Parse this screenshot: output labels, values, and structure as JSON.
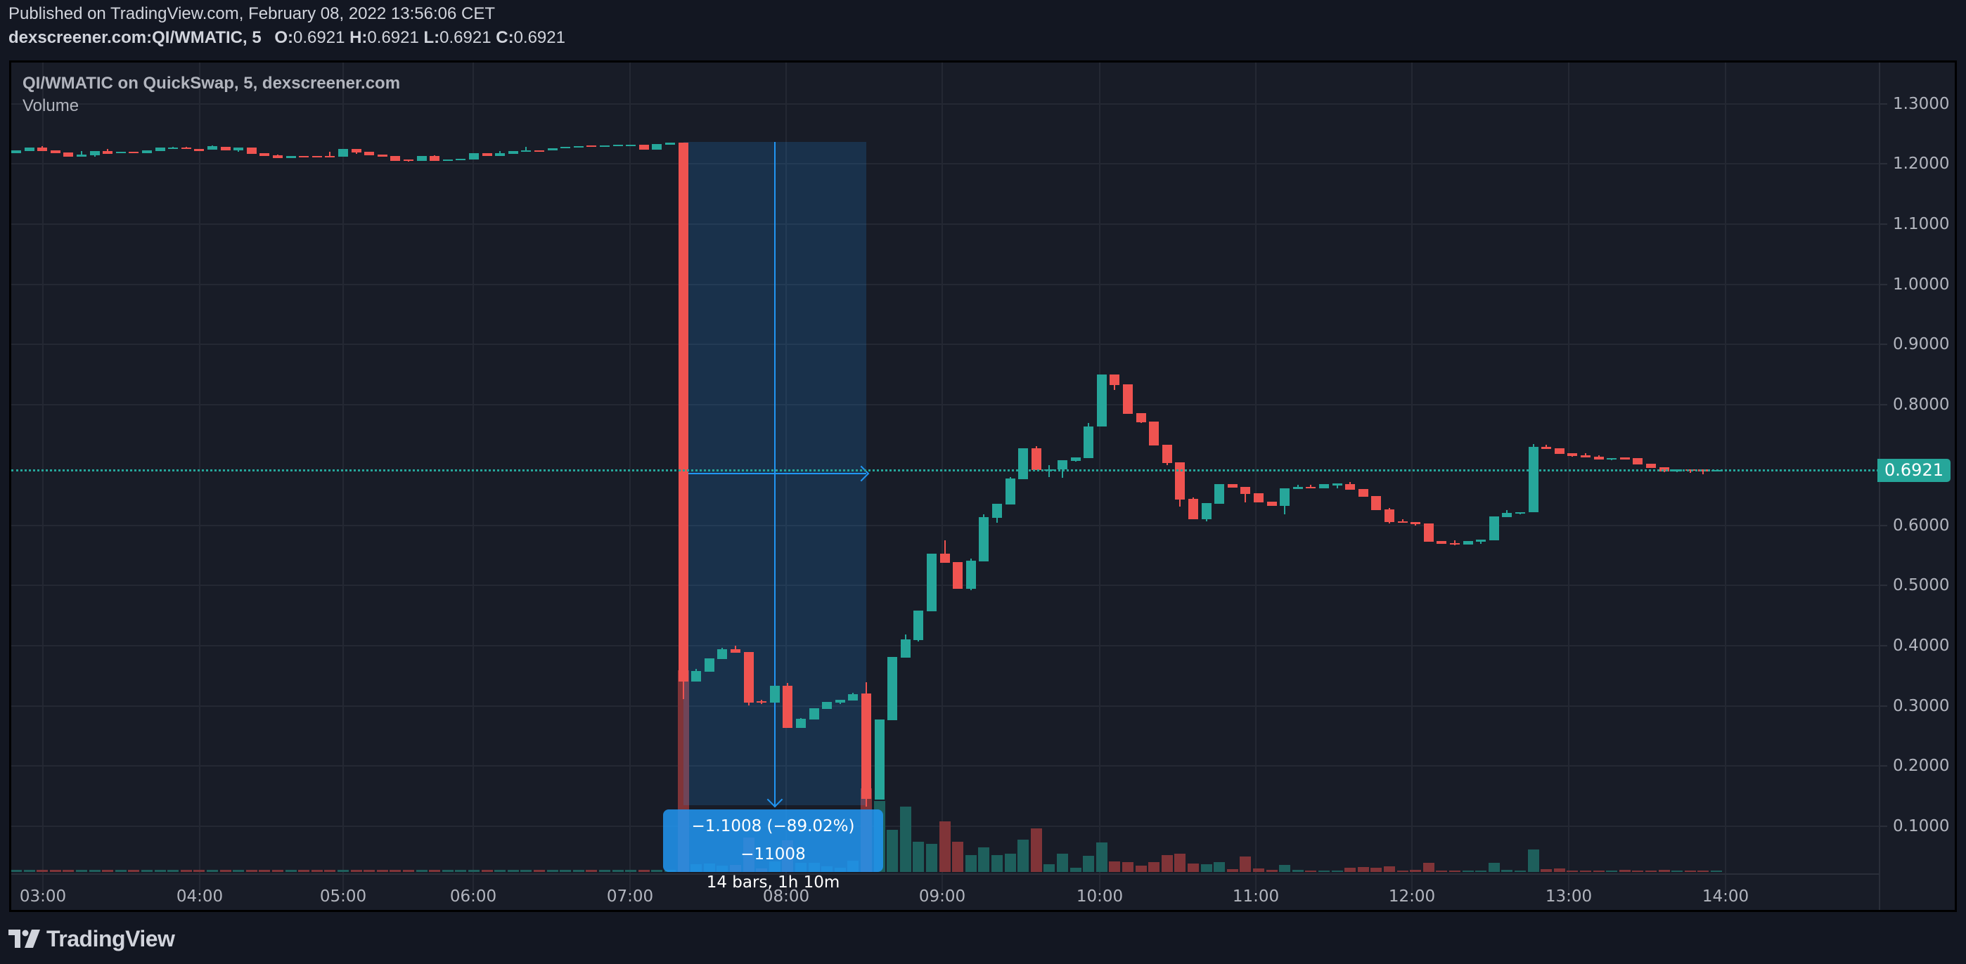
{
  "header": {
    "published": "Published on TradingView.com, February 08, 2022 13:56:06 CET",
    "symbol": "dexscreener.com:QI/WMATIC, 5",
    "ohlc": {
      "o_label": "O:",
      "o": "0.6921",
      "h_label": "H:",
      "h": "0.6921",
      "l_label": "L:",
      "l": "0.6921",
      "c_label": "C:",
      "c": "0.6921"
    }
  },
  "chart": {
    "title": "QI/WMATIC on QuickSwap, 5, dexscreener.com",
    "volume_label": "Volume",
    "last_price": "0.6921",
    "colors": {
      "up": "#26a69a",
      "down": "#ef5350",
      "up_vol": "#1e5f5c",
      "down_vol": "#803438",
      "measure": "#2196f3",
      "grid": "#242833",
      "bg": "#181c27",
      "page_bg": "#131722"
    },
    "measure": {
      "line1": "−1.1008 (−89.02%) −11008",
      "line2": "14 bars, 1h 10m"
    }
  },
  "footer": {
    "logo_text": "TradingView"
  },
  "chart_data": {
    "type": "candlestick",
    "title": "QI/WMATIC on QuickSwap, 5, dexscreener.com",
    "interval": "5m",
    "price_axis": {
      "ticks": [
        "1.3000",
        "1.2000",
        "1.1000",
        "1.0000",
        "0.9000",
        "0.8000",
        "0.6000",
        "0.5000",
        "0.4000",
        "0.3000",
        "0.2000",
        "0.1000"
      ],
      "range": [
        0.0,
        1.35
      ]
    },
    "time_axis": {
      "ticks": [
        "03:00",
        "04:00",
        "05:00",
        "06:00",
        "07:00",
        "08:00",
        "09:00",
        "10:00",
        "11:00",
        "12:00",
        "13:00",
        "14:00"
      ]
    },
    "last_price": 0.6921,
    "measurement": {
      "change": -1.1008,
      "change_pct": -89.02,
      "ticks": -11008,
      "bars": 14,
      "duration": "1h 10m",
      "start_index": 51,
      "end_index": 65
    },
    "candles_ohlc_vol": [
      [
        1.2179,
        1.2225,
        1.2179,
        1.2225,
        3
      ],
      [
        1.2214,
        1.2272,
        1.2214,
        1.2272,
        3
      ],
      [
        1.2272,
        1.2295,
        1.2214,
        1.2214,
        3
      ],
      [
        1.2225,
        1.2225,
        1.2179,
        1.2179,
        3
      ],
      [
        1.219,
        1.219,
        1.212,
        1.212,
        3
      ],
      [
        1.212,
        1.2214,
        1.212,
        1.2155,
        3
      ],
      [
        1.2144,
        1.2214,
        1.212,
        1.2214,
        3
      ],
      [
        1.2214,
        1.2249,
        1.2167,
        1.2167,
        3
      ],
      [
        1.2179,
        1.2202,
        1.2179,
        1.2202,
        3
      ],
      [
        1.2202,
        1.2202,
        1.2179,
        1.2179,
        3
      ],
      [
        1.2179,
        1.2225,
        1.2179,
        1.2225,
        3
      ],
      [
        1.2214,
        1.2272,
        1.2214,
        1.2272,
        3
      ],
      [
        1.2249,
        1.2284,
        1.2249,
        1.2272,
        3
      ],
      [
        1.2272,
        1.2284,
        1.2249,
        1.2249,
        3
      ],
      [
        1.2249,
        1.2249,
        1.2214,
        1.2214,
        3
      ],
      [
        1.2237,
        1.2307,
        1.2237,
        1.2295,
        3
      ],
      [
        1.2284,
        1.2284,
        1.2225,
        1.2225,
        3
      ],
      [
        1.2225,
        1.2272,
        1.22,
        1.2272,
        3
      ],
      [
        1.2272,
        1.2272,
        1.2167,
        1.2167,
        3
      ],
      [
        1.2179,
        1.2179,
        1.2132,
        1.2132,
        3
      ],
      [
        1.2144,
        1.2155,
        1.2097,
        1.2097,
        3
      ],
      [
        1.2097,
        1.2132,
        1.2097,
        1.2132,
        3
      ],
      [
        1.2132,
        1.2132,
        1.2109,
        1.2109,
        3
      ],
      [
        1.2132,
        1.2132,
        1.2109,
        1.2109,
        3
      ],
      [
        1.2132,
        1.2202,
        1.2109,
        1.2109,
        3
      ],
      [
        1.212,
        1.2249,
        1.212,
        1.2249,
        3
      ],
      [
        1.2249,
        1.2249,
        1.2167,
        1.219,
        3
      ],
      [
        1.2202,
        1.2202,
        1.2144,
        1.2144,
        3
      ],
      [
        1.2155,
        1.2155,
        1.212,
        1.212,
        3
      ],
      [
        1.2132,
        1.2132,
        1.205,
        1.205,
        3
      ],
      [
        1.2074,
        1.2074,
        1.204,
        1.205,
        3
      ],
      [
        1.205,
        1.2132,
        1.205,
        1.2132,
        3
      ],
      [
        1.2132,
        1.2144,
        1.205,
        1.205,
        3
      ],
      [
        1.2062,
        1.2074,
        1.2062,
        1.2074,
        3
      ],
      [
        1.2062,
        1.2085,
        1.2062,
        1.2085,
        3
      ],
      [
        1.2074,
        1.2179,
        1.2074,
        1.2179,
        3
      ],
      [
        1.2179,
        1.2179,
        1.2132,
        1.2132,
        3
      ],
      [
        1.2132,
        1.2214,
        1.2132,
        1.2179,
        3
      ],
      [
        1.2167,
        1.2214,
        1.2167,
        1.2214,
        3
      ],
      [
        1.2214,
        1.2284,
        1.2214,
        1.2225,
        3
      ],
      [
        1.2225,
        1.2225,
        1.2214,
        1.2214,
        3
      ],
      [
        1.2225,
        1.226,
        1.2225,
        1.226,
        3
      ],
      [
        1.226,
        1.2284,
        1.226,
        1.2284,
        3
      ],
      [
        1.2272,
        1.2295,
        1.2272,
        1.2295,
        3
      ],
      [
        1.2307,
        1.2307,
        1.2295,
        1.2295,
        3
      ],
      [
        1.2295,
        1.2307,
        1.2295,
        1.2307,
        3
      ],
      [
        1.2295,
        1.2319,
        1.2295,
        1.2319,
        3
      ],
      [
        1.2307,
        1.2319,
        1.2307,
        1.2319,
        3
      ],
      [
        1.2319,
        1.2319,
        1.2237,
        1.2237,
        3
      ],
      [
        1.2237,
        1.233,
        1.2237,
        1.233,
        3
      ],
      [
        1.2319,
        1.2354,
        1.2319,
        1.2354,
        3
      ],
      [
        1.2354,
        1.2354,
        0.3112,
        0.3404,
        287
      ],
      [
        0.3404,
        0.3614,
        0.3404,
        0.3579,
        11
      ],
      [
        0.3567,
        0.3789,
        0.3567,
        0.3789,
        12
      ],
      [
        0.3777,
        0.3963,
        0.3777,
        0.394,
        9
      ],
      [
        0.394,
        0.3998,
        0.3882,
        0.3882,
        10
      ],
      [
        0.3894,
        0.3894,
        0.3007,
        0.3054,
        49
      ],
      [
        0.3077,
        0.31,
        0.303,
        0.3054,
        5
      ],
      [
        0.3054,
        0.3334,
        0.3054,
        0.3334,
        15
      ],
      [
        0.3334,
        0.3381,
        0.2634,
        0.2634,
        45
      ],
      [
        0.2634,
        0.2797,
        0.2634,
        0.2785,
        13
      ],
      [
        0.2774,
        0.296,
        0.2774,
        0.296,
        13
      ],
      [
        0.2949,
        0.3065,
        0.2949,
        0.3065,
        8
      ],
      [
        0.3054,
        0.31,
        0.303,
        0.31,
        6
      ],
      [
        0.3089,
        0.3217,
        0.3089,
        0.3194,
        16
      ],
      [
        0.3205,
        0.3392,
        0.1327,
        0.1455,
        119
      ],
      [
        0.1443,
        0.2774,
        0.1443,
        0.2774,
        101
      ],
      [
        0.2762,
        0.3812,
        0.2762,
        0.3812,
        60
      ],
      [
        0.38,
        0.4186,
        0.38,
        0.4104,
        93
      ],
      [
        0.4092,
        0.4582,
        0.4071,
        0.4582,
        43
      ],
      [
        0.4571,
        0.5527,
        0.4571,
        0.5527,
        40
      ],
      [
        0.5527,
        0.5749,
        0.5376,
        0.5376,
        72
      ],
      [
        0.5388,
        0.5388,
        0.4944,
        0.4944,
        43
      ],
      [
        0.4944,
        0.5446,
        0.4921,
        0.5411,
        24
      ],
      [
        0.5399,
        0.618,
        0.5399,
        0.6134,
        35
      ],
      [
        0.6122,
        0.6356,
        0.604,
        0.6356,
        24
      ],
      [
        0.6344,
        0.68,
        0.6344,
        0.6776,
        26
      ],
      [
        0.6764,
        0.7278,
        0.6764,
        0.7278,
        46
      ],
      [
        0.7278,
        0.7313,
        0.6916,
        0.6916,
        62
      ],
      [
        0.6916,
        0.7,
        0.68,
        0.6928,
        11
      ],
      [
        0.6928,
        0.7079,
        0.6788,
        0.7079,
        26
      ],
      [
        0.7068,
        0.7126,
        0.7056,
        0.7126,
        6
      ],
      [
        0.7114,
        0.7698,
        0.7114,
        0.764,
        23
      ],
      [
        0.764,
        0.8503,
        0.764,
        0.8503,
        42
      ],
      [
        0.8503,
        0.8503,
        0.8246,
        0.8328,
        15
      ],
      [
        0.834,
        0.834,
        0.785,
        0.785,
        14
      ],
      [
        0.7861,
        0.7861,
        0.7698,
        0.771,
        9
      ],
      [
        0.7721,
        0.7721,
        0.7324,
        0.7324,
        14
      ],
      [
        0.7336,
        0.7336,
        0.6998,
        0.7033,
        24
      ],
      [
        0.7044,
        0.7044,
        0.6309,
        0.6426,
        26
      ],
      [
        0.6438,
        0.6461,
        0.6099,
        0.6099,
        12
      ],
      [
        0.6099,
        0.6368,
        0.6064,
        0.6368,
        11
      ],
      [
        0.6356,
        0.6683,
        0.6356,
        0.6683,
        14
      ],
      [
        0.6683,
        0.6683,
        0.6624,
        0.6624,
        4
      ],
      [
        0.6636,
        0.6636,
        0.6379,
        0.6519,
        22
      ],
      [
        0.6531,
        0.6531,
        0.6379,
        0.6379,
        5
      ],
      [
        0.6391,
        0.6391,
        0.6321,
        0.6321,
        3
      ],
      [
        0.6321,
        0.6613,
        0.6181,
        0.6613,
        10
      ],
      [
        0.6601,
        0.6671,
        0.6601,
        0.6636,
        3
      ],
      [
        0.6636,
        0.6671,
        0.6613,
        0.6613,
        2
      ],
      [
        0.6613,
        0.6683,
        0.6613,
        0.6683,
        2
      ],
      [
        0.6659,
        0.6695,
        0.6613,
        0.6695,
        2
      ],
      [
        0.6683,
        0.6718,
        0.6589,
        0.6589,
        6
      ],
      [
        0.6601,
        0.6601,
        0.6473,
        0.6473,
        7
      ],
      [
        0.6484,
        0.6484,
        0.6251,
        0.6251,
        6
      ],
      [
        0.6263,
        0.6286,
        0.603,
        0.6053,
        8
      ],
      [
        0.6064,
        0.6099,
        0.6041,
        0.6041,
        2
      ],
      [
        0.6053,
        0.6053,
        0.5995,
        0.6018,
        3
      ],
      [
        0.603,
        0.603,
        0.5726,
        0.5726,
        13
      ],
      [
        0.5738,
        0.5738,
        0.5691,
        0.5691,
        2
      ],
      [
        0.5703,
        0.5749,
        0.5668,
        0.5679,
        2
      ],
      [
        0.5679,
        0.5738,
        0.5679,
        0.5738,
        2
      ],
      [
        0.5726,
        0.5761,
        0.5691,
        0.5761,
        2
      ],
      [
        0.5749,
        0.6146,
        0.5749,
        0.6146,
        13
      ],
      [
        0.6134,
        0.6251,
        0.6134,
        0.6204,
        3
      ],
      [
        0.6193,
        0.6216,
        0.6181,
        0.6216,
        2
      ],
      [
        0.6216,
        0.7348,
        0.6216,
        0.7301,
        32
      ],
      [
        0.7301,
        0.7336,
        0.7266,
        0.7266,
        4
      ],
      [
        0.7278,
        0.7278,
        0.7184,
        0.7184,
        5
      ],
      [
        0.7196,
        0.7196,
        0.7138,
        0.7149,
        2
      ],
      [
        0.7161,
        0.7196,
        0.7126,
        0.7126,
        2
      ],
      [
        0.7138,
        0.7161,
        0.7091,
        0.7091,
        2
      ],
      [
        0.7091,
        0.7114,
        0.7079,
        0.7114,
        2
      ],
      [
        0.7126,
        0.7126,
        0.7091,
        0.7091,
        3
      ],
      [
        0.7114,
        0.7114,
        0.7009,
        0.7009,
        2
      ],
      [
        0.7021,
        0.7021,
        0.6951,
        0.6951,
        2
      ],
      [
        0.6963,
        0.6963,
        0.6881,
        0.6893,
        3
      ],
      [
        0.6893,
        0.6928,
        0.6881,
        0.6928,
        2
      ],
      [
        0.6928,
        0.6928,
        0.687,
        0.6905,
        2
      ],
      [
        0.6928,
        0.6928,
        0.6846,
        0.6893,
        2
      ],
      [
        0.6905,
        0.6921,
        0.6905,
        0.6921,
        2
      ]
    ]
  }
}
